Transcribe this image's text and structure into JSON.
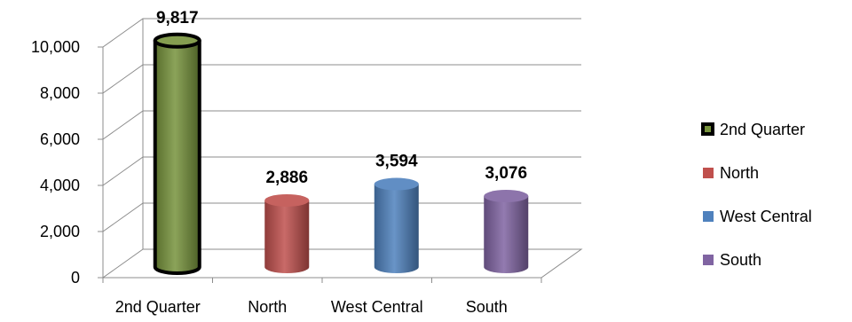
{
  "chart_data": {
    "type": "bar",
    "style": "3d-cylinder",
    "categories": [
      "2nd Quarter",
      "North",
      "West Central",
      "South"
    ],
    "values": [
      9817,
      2886,
      3594,
      3076
    ],
    "data_labels": [
      "9,817",
      "2,886",
      "3,594",
      "3,076"
    ],
    "ylim": [
      0,
      10000
    ],
    "yticks": [
      0,
      2000,
      4000,
      6000,
      8000,
      10000
    ],
    "ytick_labels": [
      "0",
      "2,000",
      "4,000",
      "6,000",
      "8,000",
      "10,000"
    ],
    "grid": true,
    "legend": {
      "placement": "right",
      "entries": [
        "2nd Quarter",
        "North",
        "West Central",
        "South"
      ]
    },
    "colors": [
      "#77933C",
      "#C0504D",
      "#4F81BD",
      "#8064A2"
    ],
    "highlight_outline": "#000000"
  }
}
